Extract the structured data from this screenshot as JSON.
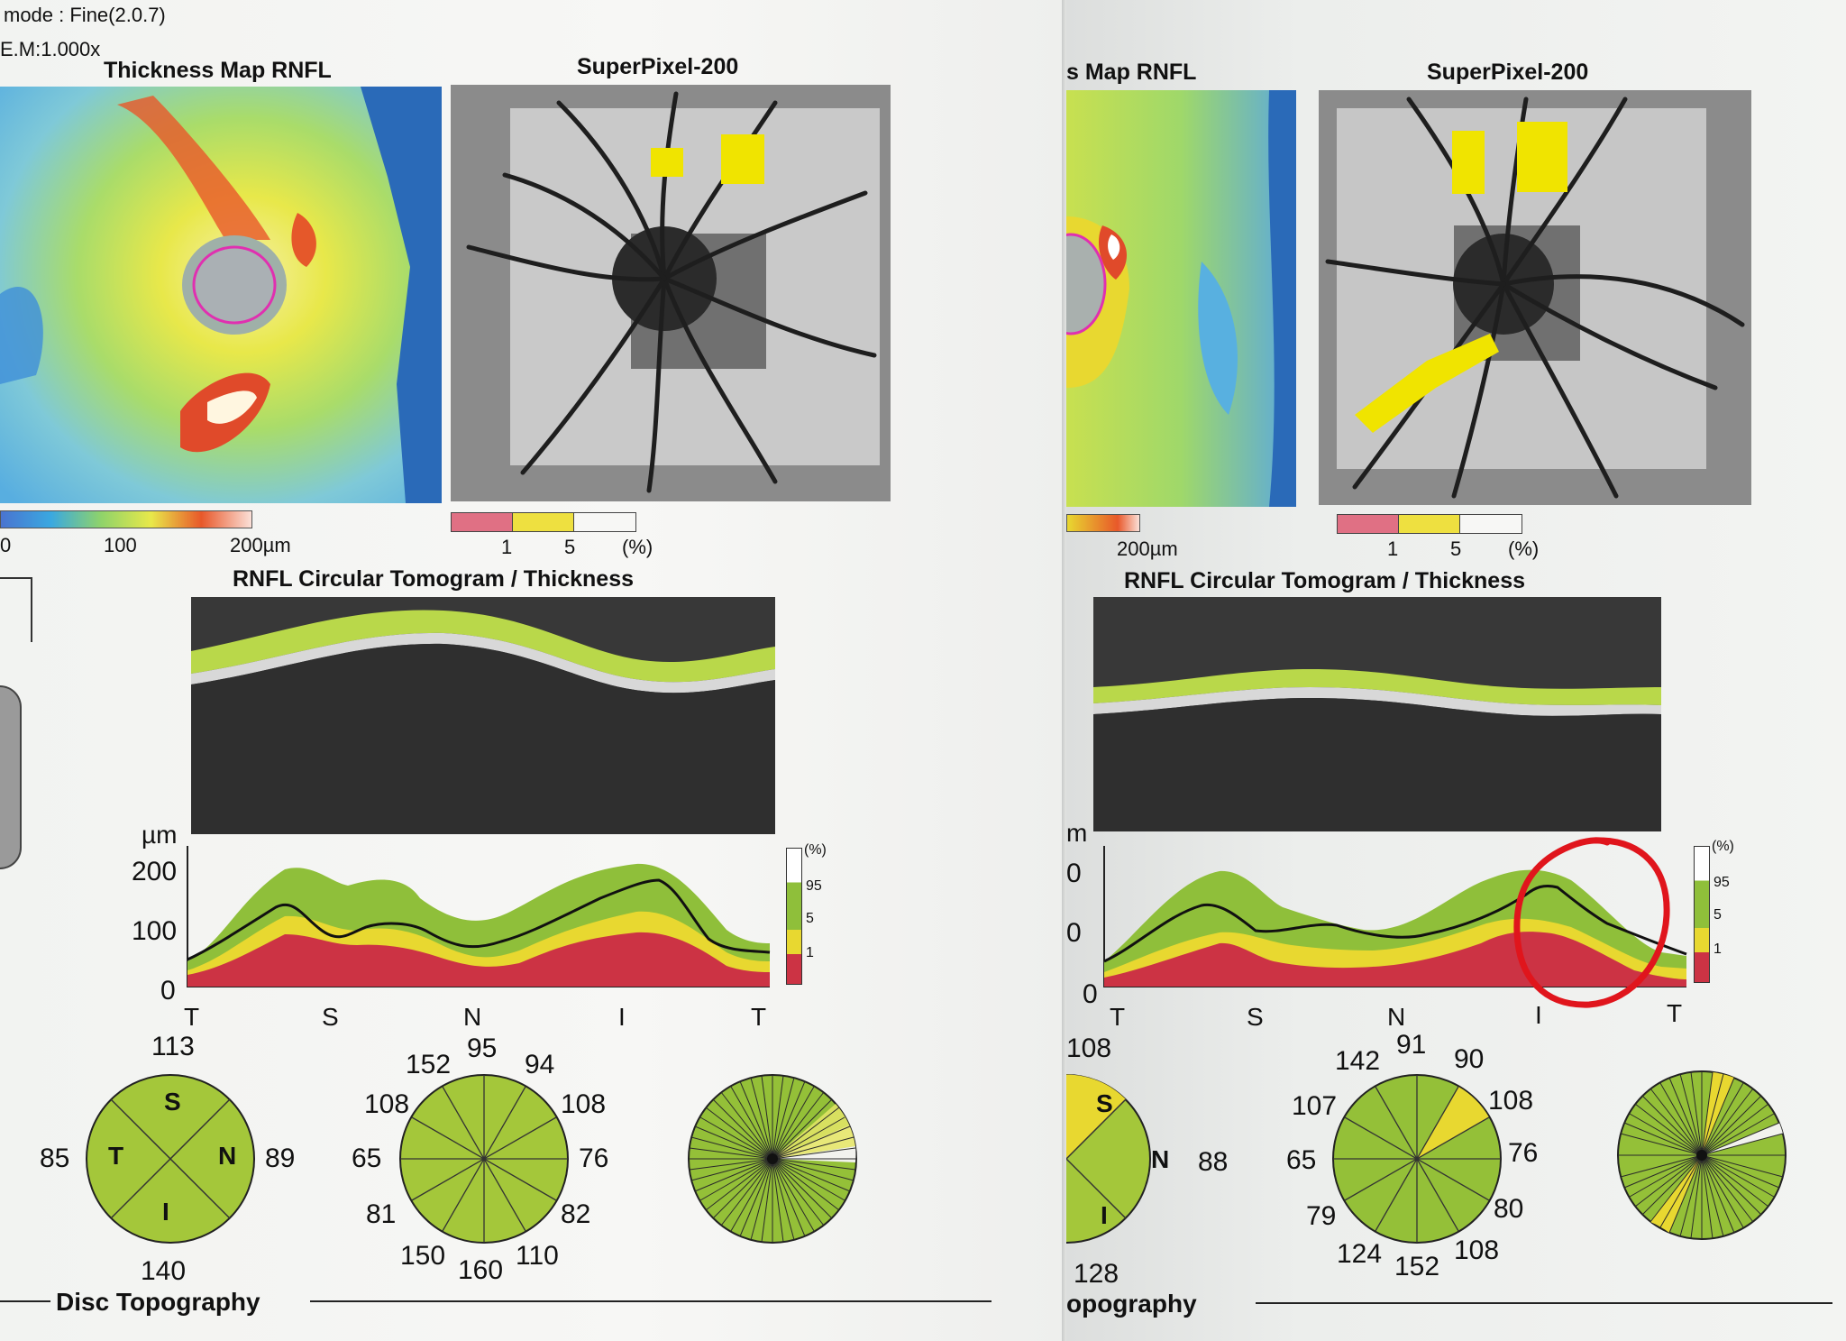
{
  "left": {
    "header_line1": "mode : Fine(2.0.7)",
    "header_line2": "E.M:1.000x",
    "thickness_title": "Thickness Map RNFL",
    "superpixel_title": "SuperPixel-200",
    "thickness_scale": [
      "0",
      "100",
      "200µm"
    ],
    "superpixel_scale": [
      "1",
      "5",
      "(%)"
    ],
    "tomogram_title": "RNFL Circular Tomogram / Thickness",
    "y_unit": "µm",
    "y_ticks": [
      "200",
      "100",
      "0"
    ],
    "x_ticks": [
      "T",
      "S",
      "N",
      "I",
      "T"
    ],
    "pct_legend": [
      "(%)",
      "95",
      "5",
      "1"
    ],
    "quadrant": {
      "S": "113",
      "T": "85",
      "N": "89",
      "I": "140",
      "labels": [
        "S",
        "T",
        "N",
        "I"
      ]
    },
    "clock": [
      "152",
      "95",
      "94",
      "108",
      "108",
      "65",
      "76",
      "81",
      "82",
      "150",
      "160",
      "110"
    ],
    "footer": "Disc Topography"
  },
  "right": {
    "thickness_title": "s Map RNFL",
    "superpixel_title": "SuperPixel-200",
    "thickness_scale": [
      "200µm"
    ],
    "superpixel_scale": [
      "1",
      "5",
      "(%)"
    ],
    "tomogram_title": "RNFL Circular Tomogram / Thickness",
    "y_unit": "m",
    "y_ticks": [
      "0",
      "0",
      "0"
    ],
    "x_ticks": [
      "T",
      "S",
      "N",
      "I",
      "T"
    ],
    "pct_legend": [
      "(%)",
      "95",
      "5",
      "1"
    ],
    "quadrant": {
      "S_val": "108",
      "N_val": "88",
      "I_val": "128",
      "labels": [
        "S",
        "N",
        "I"
      ]
    },
    "clock": [
      "142",
      "91",
      "90",
      "107",
      "108",
      "65",
      "76",
      "79",
      "80",
      "124",
      "152",
      "108"
    ],
    "footer": "opography"
  },
  "colors": {
    "red_band": "#cc3344",
    "yellow_band": "#e8d830",
    "green_band": "#8fbf3a",
    "sector_green": "#a4c73a",
    "annotation_red": "#e0151c"
  }
}
